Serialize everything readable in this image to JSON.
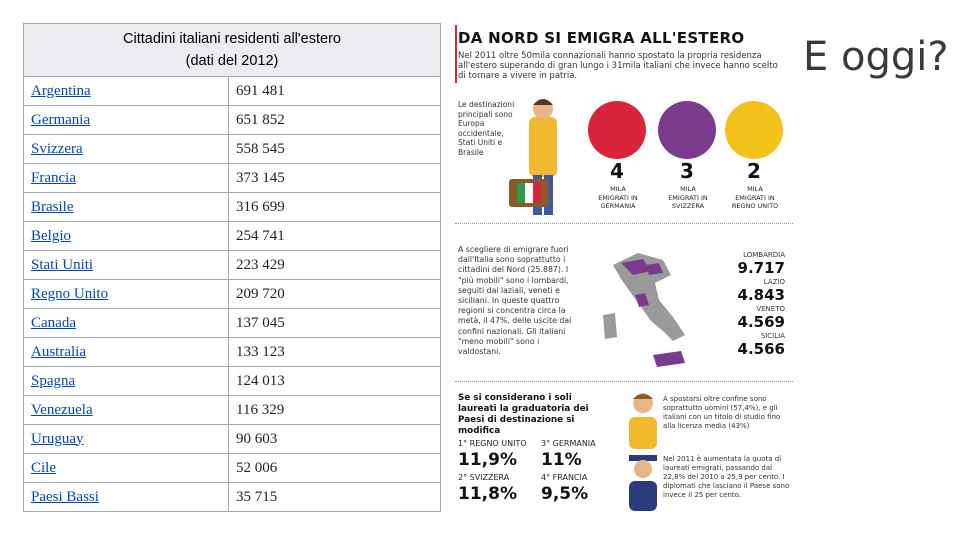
{
  "table": {
    "caption_line1": "Cittadini italiani residenti all'estero",
    "caption_line2": "(dati del 2012)",
    "rows": [
      {
        "country": "Argentina",
        "value": "691 481"
      },
      {
        "country": "Germania",
        "value": "651 852"
      },
      {
        "country": "Svizzera",
        "value": "558 545"
      },
      {
        "country": "Francia",
        "value": "373 145"
      },
      {
        "country": "Brasile",
        "value": "316 699"
      },
      {
        "country": "Belgio",
        "value": "254 741"
      },
      {
        "country": "Stati Uniti",
        "value": "223 429"
      },
      {
        "country": "Regno Unito",
        "value": "209 720"
      },
      {
        "country": "Canada",
        "value": "137 045"
      },
      {
        "country": "Australia",
        "value": "133 123"
      },
      {
        "country": "Spagna",
        "value": "124 013"
      },
      {
        "country": "Venezuela",
        "value": "116 329"
      },
      {
        "country": "Uruguay",
        "value": "90 603"
      },
      {
        "country": "Cile",
        "value": "52 006"
      },
      {
        "country": "Paesi Bassi",
        "value": "35 715"
      }
    ]
  },
  "slide_title": "E oggi?",
  "infographic": {
    "title": "DA NORD SI EMIGRA ALL'ESTERO",
    "intro": "Nel 2011 oltre 50mila connazionali hanno spostato la propria residenza all'estero superando di gran lungo i 31mila italiani che invece hanno scelto di tornare a vivere in patria.",
    "destinations_text": "Le destinazioni principali sono Europa occidentale, Stati Uniti e Brasile",
    "countries": [
      {
        "num": "4",
        "mila": "MILA",
        "label": "EMIGRATI IN GERMANIA",
        "color": "#d9243b"
      },
      {
        "num": "3",
        "mila": "MILA",
        "label": "EMIGRATI IN SVIZZERA",
        "color": "#7a3b8c"
      },
      {
        "num": "2",
        "mila": "MILA",
        "label": "EMIGRATI IN REGNO UNITO",
        "color": "#f2c21a"
      }
    ],
    "regions_text": "A scegliere di emigrare fuori dall'Italia sono soprattutto i cittadini del Nord (25.887). I \"più mobili\" sono i lombardi, seguiti dai laziali, veneti e siciliani. In queste quattro regioni si concentra circa la metà, il 47%, delle uscite dai confini nazionali. Gli italiani \"meno mobili\" sono i valdostani.",
    "regions": [
      {
        "name": "LOMBARDIA",
        "value": "9.717"
      },
      {
        "name": "LAZIO",
        "value": "4.843"
      },
      {
        "name": "VENETO",
        "value": "4.569"
      },
      {
        "name": "SICILIA",
        "value": "4.566"
      }
    ],
    "graduates_title": "Se si considerano i soli laureati la graduatoria dei Paesi di destinazione si modifica",
    "graduates": [
      {
        "label": "1° REGNO UNITO",
        "value": "11,9%"
      },
      {
        "label": "3° GERMANIA",
        "value": "11%"
      },
      {
        "label": "2° SVIZZERA",
        "value": "11,8%"
      },
      {
        "label": "4° FRANCIA",
        "value": "9,5%"
      }
    ],
    "note1": "A spostarsi oltre confine sono soprattutto uomini (57,4%), e gli italiani con un titolo di studio fino alla licenza media (43%)",
    "note2": "Nel 2011 è aumentata la quota di laureati emigrati, passando dal 22,8% del 2010 a 25,9 per cento. I diplomati che lasciano il Paese sono invece il 25 per cento."
  }
}
